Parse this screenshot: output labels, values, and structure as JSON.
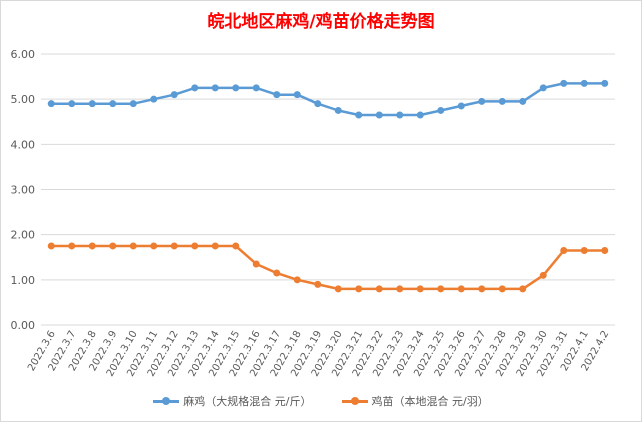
{
  "chart_data": {
    "type": "line",
    "title": "皖北地区麻鸡/鸡苗价格走势图",
    "categories": [
      "2022.3.6",
      "2022.3.7",
      "2022.3.8",
      "2022.3.9",
      "2022.3.10",
      "2022.3.11",
      "2022.3.12",
      "2022.3.13",
      "2022.3.14",
      "2022.3.15",
      "2022.3.16",
      "2022.3.17",
      "2022.3.18",
      "2022.3.19",
      "2022.3.20",
      "2022.3.21",
      "2022.3.22",
      "2022.3.23",
      "2022.3.24",
      "2022.3.25",
      "2022.3.26",
      "2022.3.27",
      "2022.3.28",
      "2022.3.29",
      "2022.3.30",
      "2022.3.31",
      "2022.4.1",
      "2022.4.2"
    ],
    "series": [
      {
        "name": "麻鸡（大规格混合 元/斤）",
        "color": "#5b9bd5",
        "values": [
          4.9,
          4.9,
          4.9,
          4.9,
          4.9,
          5.0,
          5.1,
          5.25,
          5.25,
          5.25,
          5.25,
          5.1,
          5.1,
          4.9,
          4.75,
          4.65,
          4.65,
          4.65,
          4.65,
          4.75,
          4.85,
          4.95,
          4.95,
          4.95,
          5.25,
          5.35,
          5.35,
          5.35
        ]
      },
      {
        "name": "鸡苗（本地混合 元/羽）",
        "color": "#ed7d31",
        "values": [
          1.75,
          1.75,
          1.75,
          1.75,
          1.75,
          1.75,
          1.75,
          1.75,
          1.75,
          1.75,
          1.35,
          1.15,
          1.0,
          0.9,
          0.8,
          0.8,
          0.8,
          0.8,
          0.8,
          0.8,
          0.8,
          0.8,
          0.8,
          0.8,
          1.1,
          1.65,
          1.65,
          1.65
        ]
      }
    ],
    "ylim": [
      0,
      6
    ],
    "yticks": [
      "0.00",
      "1.00",
      "2.00",
      "3.00",
      "4.00",
      "5.00",
      "6.00"
    ],
    "grid": true,
    "legend_position": "bottom"
  }
}
